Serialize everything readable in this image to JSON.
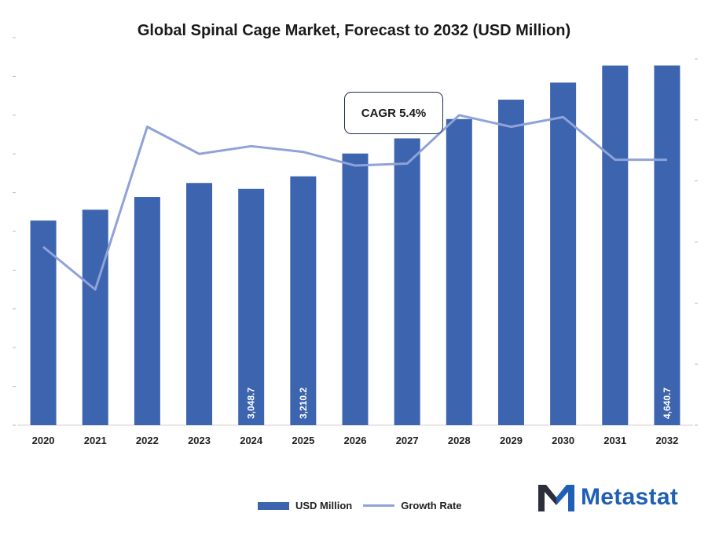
{
  "chart_data": {
    "type": "bar",
    "title": "Global Spinal Cage Market, Forecast to 2032 (USD Million)",
    "categories": [
      "2020",
      "2021",
      "2022",
      "2023",
      "2024",
      "2025",
      "2026",
      "2027",
      "2028",
      "2029",
      "2030",
      "2031",
      "2032"
    ],
    "series": [
      {
        "name": "USD Million",
        "type": "bar",
        "axis": "left",
        "color": "#3d64ae",
        "values": [
          2640,
          2780,
          2945,
          3125,
          3048.7,
          3210.2,
          3505,
          3700,
          3950,
          4200,
          4420,
          4640,
          4640.7
        ],
        "data_labels": [
          "",
          "",
          "",
          "",
          "3,048.7",
          "3,210.2",
          "",
          "",
          "",
          "",
          "",
          "",
          "4,640.7"
        ]
      },
      {
        "name": "Growth Rate",
        "type": "line",
        "axis": "right",
        "color": "#8fa2d9",
        "values": [
          4.6,
          3.5,
          7.7,
          7.0,
          7.2,
          7.05,
          6.7,
          6.75,
          8.0,
          7.7,
          7.95,
          6.85,
          6.85
        ]
      }
    ],
    "ylim": [
      0,
      5000
    ],
    "y2lim": [
      0,
      10
    ],
    "legend_position": "bottom",
    "grid": false,
    "annotation": "CAGR 5.4%"
  },
  "brand": {
    "name": "Metastat",
    "logo_icon": "m-logo-icon",
    "color": "#1f5fb4"
  }
}
